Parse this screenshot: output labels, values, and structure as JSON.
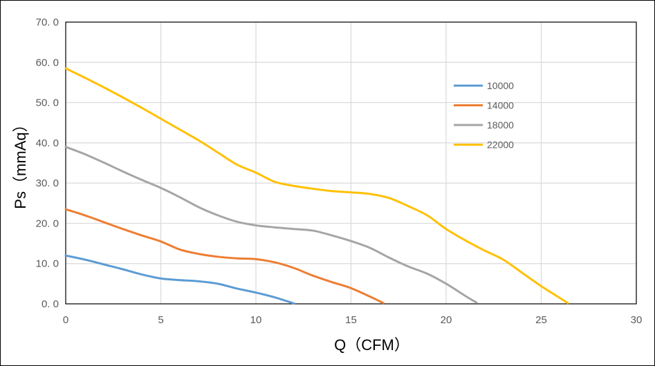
{
  "chart_data": {
    "type": "line",
    "title": "",
    "xlabel": "Q（CFM）",
    "ylabel": "Ps（mmAq）",
    "xlim": [
      0,
      30
    ],
    "ylim": [
      0,
      70
    ],
    "x_ticks": [
      "0",
      "5",
      "10",
      "15",
      "20",
      "25",
      "30"
    ],
    "y_ticks": [
      "0. 0",
      "10. 0",
      "20. 0",
      "30. 0",
      "40. 0",
      "50. 0",
      "60. 0",
      "70. 0"
    ],
    "grid": true,
    "legend_position": "right",
    "series": [
      {
        "name": "10000",
        "color": "#5b9bd5",
        "points": [
          [
            0,
            12.0
          ],
          [
            1,
            11.0
          ],
          [
            2,
            9.8
          ],
          [
            3,
            8.6
          ],
          [
            4,
            7.3
          ],
          [
            5,
            6.3
          ],
          [
            6,
            5.9
          ],
          [
            7,
            5.6
          ],
          [
            8,
            5.0
          ],
          [
            9,
            3.8
          ],
          [
            10,
            2.8
          ],
          [
            11,
            1.6
          ],
          [
            12,
            0.1
          ]
        ]
      },
      {
        "name": "14000",
        "color": "#ed7d31",
        "points": [
          [
            0,
            23.5
          ],
          [
            1,
            22.0
          ],
          [
            2,
            20.3
          ],
          [
            3,
            18.6
          ],
          [
            4,
            17.0
          ],
          [
            5,
            15.5
          ],
          [
            6,
            13.5
          ],
          [
            7,
            12.4
          ],
          [
            8,
            11.7
          ],
          [
            9,
            11.3
          ],
          [
            10,
            11.1
          ],
          [
            11,
            10.3
          ],
          [
            12,
            8.9
          ],
          [
            13,
            7.0
          ],
          [
            14,
            5.4
          ],
          [
            15,
            3.9
          ],
          [
            16,
            1.8
          ],
          [
            16.7,
            0.2
          ]
        ]
      },
      {
        "name": "18000",
        "color": "#a5a5a5",
        "points": [
          [
            0,
            39.0
          ],
          [
            1,
            37.2
          ],
          [
            2,
            35.1
          ],
          [
            3,
            32.9
          ],
          [
            4,
            30.8
          ],
          [
            5,
            28.8
          ],
          [
            6,
            26.5
          ],
          [
            7,
            24.0
          ],
          [
            8,
            22.0
          ],
          [
            9,
            20.4
          ],
          [
            10,
            19.5
          ],
          [
            11,
            19.0
          ],
          [
            12,
            18.6
          ],
          [
            13,
            18.2
          ],
          [
            14,
            17.0
          ],
          [
            15,
            15.6
          ],
          [
            16,
            13.9
          ],
          [
            17,
            11.5
          ],
          [
            18,
            9.3
          ],
          [
            19,
            7.5
          ],
          [
            20,
            5.0
          ],
          [
            21,
            2.0
          ],
          [
            21.6,
            0.3
          ]
        ]
      },
      {
        "name": "22000",
        "color": "#ffc000",
        "points": [
          [
            0,
            58.5
          ],
          [
            1,
            56.2
          ],
          [
            2,
            53.8
          ],
          [
            3,
            51.3
          ],
          [
            4,
            48.7
          ],
          [
            5,
            46.0
          ],
          [
            6,
            43.3
          ],
          [
            7,
            40.6
          ],
          [
            8,
            37.6
          ],
          [
            9,
            34.6
          ],
          [
            10,
            32.6
          ],
          [
            11,
            30.3
          ],
          [
            12,
            29.3
          ],
          [
            13,
            28.6
          ],
          [
            14,
            28.0
          ],
          [
            15,
            27.7
          ],
          [
            16,
            27.3
          ],
          [
            17,
            26.3
          ],
          [
            18,
            24.3
          ],
          [
            19,
            22.0
          ],
          [
            20,
            18.6
          ],
          [
            21,
            15.8
          ],
          [
            22,
            13.3
          ],
          [
            23,
            11.0
          ],
          [
            24,
            7.7
          ],
          [
            25,
            4.4
          ],
          [
            26,
            1.4
          ],
          [
            26.4,
            0.2
          ]
        ]
      }
    ]
  }
}
